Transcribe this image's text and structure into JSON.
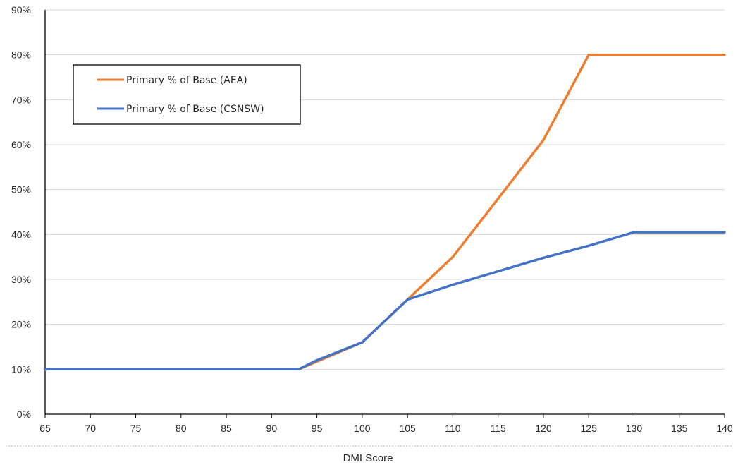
{
  "chart_data": {
    "type": "line",
    "xlabel": "DMI Score",
    "ylabel": "",
    "title": "",
    "xlim": [
      65,
      140
    ],
    "ylim": [
      0,
      90
    ],
    "x_ticks": [
      "65",
      "70",
      "75",
      "80",
      "85",
      "90",
      "95",
      "100",
      "105",
      "110",
      "115",
      "120",
      "125",
      "130",
      "135",
      "140"
    ],
    "y_ticks": [
      "0%",
      "10%",
      "20%",
      "30%",
      "40%",
      "50%",
      "60%",
      "70%",
      "80%",
      "90%"
    ],
    "grid": "horizontal",
    "legend_position": "upper-left",
    "series": [
      {
        "name": "Primary % of Base (AEA)",
        "color": "#ED7D31",
        "x": [
          65,
          93,
          100,
          105,
          110,
          115,
          120,
          125,
          130,
          135,
          140
        ],
        "y": [
          10,
          10,
          16,
          25.5,
          35,
          48,
          61,
          80,
          80,
          80,
          80
        ]
      },
      {
        "name": "Primary % of Base (CSNSW)",
        "color": "#4472C4",
        "x": [
          65,
          93,
          95,
          100,
          105,
          110,
          115,
          120,
          125,
          130,
          135,
          140
        ],
        "y": [
          10,
          10,
          12,
          16,
          25.5,
          28.8,
          31.8,
          34.8,
          37.5,
          40.5,
          40.5,
          40.5
        ]
      }
    ]
  }
}
